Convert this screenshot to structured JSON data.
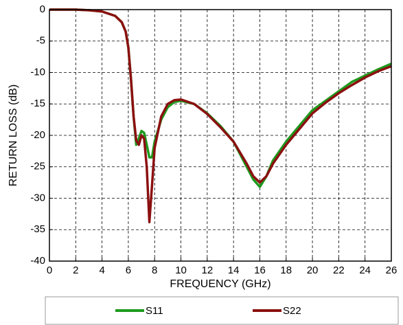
{
  "chart_data": {
    "type": "line",
    "x_label": "FREQUENCY (GHz)",
    "y_label": "RETURN LOSS (dB)",
    "x": [
      0,
      2,
      3,
      4,
      5,
      5.5,
      5.8,
      6,
      6.2,
      6.4,
      6.6,
      6.8,
      7,
      7.2,
      7.4,
      7.6,
      7.8,
      8,
      8.5,
      9,
      9.5,
      10,
      11,
      12,
      13,
      14,
      15,
      15.5,
      16,
      16.5,
      17,
      18,
      19,
      20,
      21,
      22,
      23,
      24,
      25,
      26
    ],
    "series": [
      {
        "name": "S11",
        "color": "#1e9a1e",
        "values": [
          0,
          0,
          -0.1,
          -0.3,
          -1,
          -2,
          -3.5,
          -6,
          -11,
          -17,
          -21.5,
          -20.5,
          -19.3,
          -19.6,
          -21.5,
          -23.5,
          -23.5,
          -21,
          -17.5,
          -15.5,
          -14.7,
          -14.5,
          -15,
          -16.5,
          -18.5,
          -21,
          -25,
          -27,
          -28.2,
          -26.5,
          -24,
          -21,
          -18.5,
          -16,
          -14.5,
          -13,
          -11.5,
          -10.5,
          -9.5,
          -8.6
        ]
      },
      {
        "name": "S22",
        "color": "#8b1010",
        "values": [
          0,
          0,
          -0.1,
          -0.3,
          -1,
          -2,
          -3.5,
          -6,
          -11,
          -17,
          -20.8,
          -21.5,
          -20,
          -20.5,
          -25,
          -33.8,
          -28,
          -22,
          -17,
          -15,
          -14.4,
          -14.3,
          -15,
          -16.6,
          -18.7,
          -21,
          -24.5,
          -26.5,
          -27.5,
          -26.5,
          -24.5,
          -21.5,
          -19,
          -16.5,
          -14.8,
          -13.3,
          -12,
          -10.8,
          -9.8,
          -9
        ]
      }
    ],
    "xlim": [
      0,
      26
    ],
    "xticks": [
      0,
      2,
      4,
      6,
      8,
      10,
      12,
      14,
      16,
      18,
      20,
      22,
      24,
      26
    ],
    "ylim": [
      -40,
      0
    ],
    "yticks": [
      0,
      -5,
      -10,
      -15,
      -20,
      -25,
      -30,
      -35,
      -40
    ],
    "grid": true,
    "legend": "bottom"
  }
}
